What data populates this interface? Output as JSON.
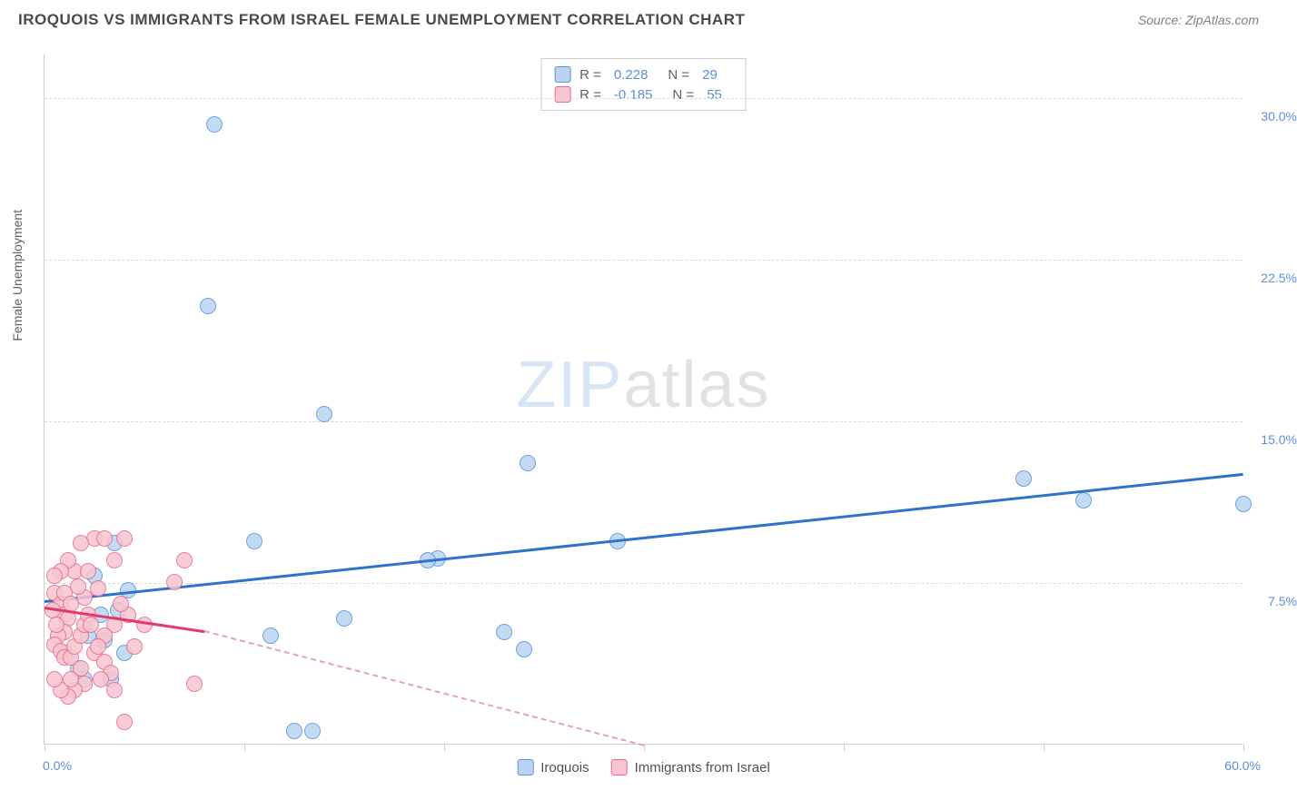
{
  "title": "IROQUOIS VS IMMIGRANTS FROM ISRAEL FEMALE UNEMPLOYMENT CORRELATION CHART",
  "source": "Source: ZipAtlas.com",
  "watermark_zip": "ZIP",
  "watermark_atlas": "atlas",
  "y_axis_title": "Female Unemployment",
  "chart": {
    "type": "scatter",
    "xlim": [
      0,
      60
    ],
    "ylim": [
      0,
      32
    ],
    "x_ticks": [
      0,
      10,
      20,
      30,
      40,
      50,
      60
    ],
    "x_min_label": "0.0%",
    "x_max_label": "60.0%",
    "y_ticks": [
      {
        "v": 7.5,
        "label": "7.5%"
      },
      {
        "v": 15.0,
        "label": "15.0%"
      },
      {
        "v": 22.5,
        "label": "22.5%"
      },
      {
        "v": 30.0,
        "label": "30.0%"
      }
    ],
    "background_color": "#ffffff",
    "grid_color": "#dcdcdc",
    "axis_color": "#cccccc",
    "tick_label_color": "#5b8fd6",
    "point_radius": 9,
    "series": [
      {
        "name": "Iroquois",
        "color_fill": "#b9d4f3",
        "color_stroke": "#5a93d6",
        "regression": {
          "x1": 0,
          "y1": 6.7,
          "x2": 60,
          "y2": 12.6,
          "color": "#2f72c9",
          "width": 3
        },
        "regression_dash": null,
        "points": [
          [
            8.5,
            28.7
          ],
          [
            8.2,
            20.3
          ],
          [
            14,
            15.3
          ],
          [
            24.2,
            13.0
          ],
          [
            49,
            12.3
          ],
          [
            52,
            11.3
          ],
          [
            60,
            11.1
          ],
          [
            10.5,
            9.4
          ],
          [
            28.7,
            9.4
          ],
          [
            19.7,
            8.6
          ],
          [
            19.2,
            8.5
          ],
          [
            23,
            5.2
          ],
          [
            24,
            4.4
          ],
          [
            4.2,
            7.1
          ],
          [
            15,
            5.8
          ],
          [
            11.3,
            5.0
          ],
          [
            12.5,
            0.6
          ],
          [
            13.4,
            0.6
          ],
          [
            3.5,
            9.3
          ],
          [
            3.7,
            6.2
          ],
          [
            2.2,
            5.0
          ],
          [
            3.0,
            4.8
          ],
          [
            1.0,
            4.2
          ],
          [
            1.7,
            3.5
          ],
          [
            2.0,
            3.0
          ],
          [
            3.3,
            3.0
          ],
          [
            4.0,
            4.2
          ],
          [
            2.5,
            7.8
          ],
          [
            2.8,
            6.0
          ]
        ]
      },
      {
        "name": "Immigrants from Israel",
        "color_fill": "#f8c5d0",
        "color_stroke": "#e66a8e",
        "regression": {
          "x1": 0,
          "y1": 6.4,
          "x2": 8,
          "y2": 5.3,
          "color": "#e23b6b",
          "width": 3
        },
        "regression_dash": {
          "x1": 8,
          "y1": 5.3,
          "x2": 30,
          "y2": 0.0,
          "color": "#e8a0b5",
          "width": 2
        },
        "points": [
          [
            0.5,
            7.0
          ],
          [
            0.8,
            6.5
          ],
          [
            1.0,
            6.0
          ],
          [
            1.2,
            5.8
          ],
          [
            1.0,
            5.2
          ],
          [
            0.7,
            5.0
          ],
          [
            0.5,
            4.6
          ],
          [
            0.8,
            4.3
          ],
          [
            1.0,
            4.0
          ],
          [
            1.3,
            4.0
          ],
          [
            1.5,
            4.5
          ],
          [
            1.8,
            5.0
          ],
          [
            2.0,
            5.5
          ],
          [
            2.2,
            6.0
          ],
          [
            2.0,
            6.8
          ],
          [
            1.7,
            7.3
          ],
          [
            1.5,
            8.0
          ],
          [
            1.2,
            8.5
          ],
          [
            2.5,
            9.5
          ],
          [
            3.0,
            9.5
          ],
          [
            4.0,
            9.5
          ],
          [
            1.8,
            9.3
          ],
          [
            0.8,
            8.0
          ],
          [
            0.5,
            7.8
          ],
          [
            2.5,
            4.2
          ],
          [
            3.0,
            3.8
          ],
          [
            3.3,
            3.3
          ],
          [
            2.8,
            3.0
          ],
          [
            2.0,
            2.8
          ],
          [
            1.5,
            2.5
          ],
          [
            1.2,
            2.2
          ],
          [
            0.8,
            2.5
          ],
          [
            0.5,
            3.0
          ],
          [
            3.5,
            2.5
          ],
          [
            4.0,
            1.0
          ],
          [
            7.5,
            2.8
          ],
          [
            6.5,
            7.5
          ],
          [
            7.0,
            8.5
          ],
          [
            3.5,
            5.5
          ],
          [
            3.0,
            5.0
          ],
          [
            2.7,
            4.5
          ],
          [
            2.3,
            5.5
          ],
          [
            1.8,
            3.5
          ],
          [
            1.3,
            3.0
          ],
          [
            4.5,
            4.5
          ],
          [
            5.0,
            5.5
          ],
          [
            4.2,
            6.0
          ],
          [
            3.8,
            6.5
          ],
          [
            0.4,
            6.2
          ],
          [
            0.6,
            5.5
          ],
          [
            1.0,
            7.0
          ],
          [
            1.3,
            6.5
          ],
          [
            2.7,
            7.2
          ],
          [
            2.2,
            8.0
          ],
          [
            3.5,
            8.5
          ]
        ]
      }
    ],
    "legend_stats": [
      {
        "swatch_fill": "#b9d4f3",
        "swatch_stroke": "#5a93d6",
        "r_label": "R =",
        "r_value": "0.228",
        "n_label": "N =",
        "n_value": "29"
      },
      {
        "swatch_fill": "#f8c5d0",
        "swatch_stroke": "#e66a8e",
        "r_label": "R =",
        "r_value": "-0.185",
        "n_label": "N =",
        "n_value": "55"
      }
    ],
    "legend_bottom": [
      {
        "swatch_fill": "#b9d4f3",
        "swatch_stroke": "#5a93d6",
        "label": "Iroquois"
      },
      {
        "swatch_fill": "#f8c5d0",
        "swatch_stroke": "#e66a8e",
        "label": "Immigrants from Israel"
      }
    ]
  }
}
